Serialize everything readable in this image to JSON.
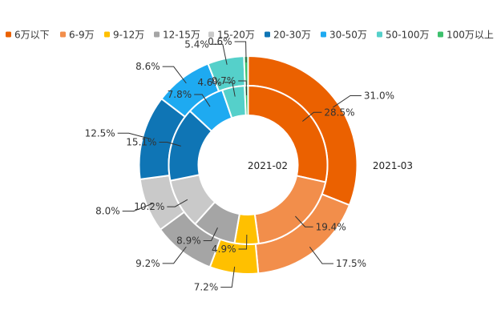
{
  "chart_data": {
    "type": "pie",
    "subtype": "nested-donut",
    "title": "",
    "legend": {
      "position": "top",
      "entries": [
        "6万以下",
        "6-9万",
        "9-12万",
        "12-15万",
        "15-20万",
        "20-30万",
        "30-50万",
        "50-100万",
        "100万以上"
      ]
    },
    "categories": [
      "6万以下",
      "6-9万",
      "9-12万",
      "12-15万",
      "15-20万",
      "20-30万",
      "30-50万",
      "50-100万",
      "100万以上"
    ],
    "colors": [
      "#eb6100",
      "#f28e4b",
      "#ffc000",
      "#a5a5a5",
      "#c9c9c9",
      "#0f75b5",
      "#1eaaf1",
      "#55d0ca",
      "#3dc06c"
    ],
    "series": [
      {
        "name": "2021-02",
        "ring": "inner",
        "values": [
          28.5,
          19.4,
          4.9,
          8.9,
          10.2,
          15.1,
          7.8,
          4.6,
          0.7
        ],
        "labels": [
          "28.5%",
          "19.4%",
          "4.9%",
          "8.9%",
          "10.2%",
          "15.1%",
          "7.8%",
          "4.6%",
          "0.7%"
        ]
      },
      {
        "name": "2021-03",
        "ring": "outer",
        "values": [
          31.0,
          17.5,
          7.2,
          9.2,
          8.0,
          12.5,
          8.6,
          5.4,
          0.6
        ],
        "labels": [
          "31.0%",
          "17.5%",
          "7.2%",
          "9.2%",
          "8.0%",
          "12.5%",
          "8.6%",
          "5.4%",
          "0.6%"
        ]
      }
    ]
  }
}
